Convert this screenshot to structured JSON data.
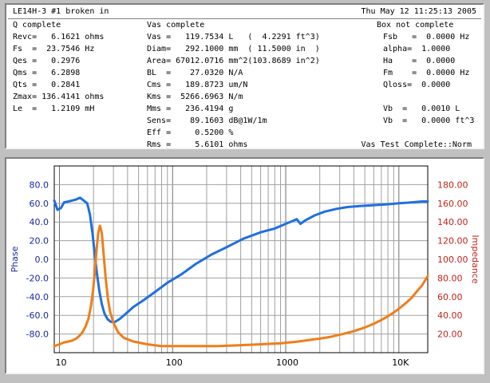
{
  "header": {
    "title": "LE14H-3 #1 broken in",
    "timestamp": "Thu May 12 11:25:13 2005"
  },
  "sections": {
    "q": "Q complete",
    "vas": "Vas complete",
    "box": "Box not complete"
  },
  "q_params": [
    "Revc=   6.1621 ohms",
    "Fs  =  23.7546 Hz",
    "Qes =   0.2976",
    "Qms =   6.2898",
    "Qts =   0.2841",
    "Zmax= 136.4141 ohms",
    "Le  =   1.2109 mH"
  ],
  "vas_params": [
    "Vas =   119.7534 L   (  4.2291 ft^3)",
    "Diam=   292.1000 mm  ( 11.5000 in  )",
    "Area= 67012.0716 mm^2(103.8689 in^2)",
    "BL  =    27.0320 N/A",
    "Cms =   189.8723 um/N",
    "Kms =  5266.6963 N/m",
    "Mms =   236.4194 g",
    "Sens=    89.1603 dB@1W/1m",
    "Eff =     0.5200 %",
    "Rms =     5.6101 ohms"
  ],
  "box_params": [
    "Fsb   =  0.0000 Hz",
    "alpha=  1.0000",
    "Ha    =  0.0000",
    "Fm    =  0.0000 Hz",
    "Qloss=  0.0000",
    "",
    "Vb  =   0.0010 L",
    "Vb  =   0.0000 ft^3"
  ],
  "status": "Vas Test Complete::Norm",
  "chart_data": {
    "type": "line",
    "x_scale": "log",
    "xlim": [
      9,
      18000
    ],
    "x_ticks": [
      {
        "value": 10,
        "label": "10"
      },
      {
        "value": 100,
        "label": "100"
      },
      {
        "value": 1000,
        "label": "1000"
      },
      {
        "value": 10000,
        "label": "10K"
      }
    ],
    "left_axis": {
      "label": "Phase",
      "ylim": [
        -100,
        100
      ],
      "ticks": [
        -80,
        -60,
        -40,
        -20,
        0,
        20,
        40,
        60,
        80
      ],
      "tick_labels": [
        "-80.0",
        "-60.0",
        "-40.0",
        "-20.0",
        "0.0",
        "20.0",
        "40.0",
        "60.0",
        "80.0"
      ]
    },
    "right_axis": {
      "label": "Impedance",
      "ylim": [
        0,
        200
      ],
      "ticks": [
        20,
        40,
        60,
        80,
        100,
        120,
        140,
        160,
        180
      ],
      "tick_labels": [
        "20.00",
        "40.00",
        "60.00",
        "80.00",
        "100.00",
        "120.00",
        "140.00",
        "160.00",
        "180.00"
      ]
    },
    "grid": true,
    "series": [
      {
        "name": "Phase",
        "axis": "left",
        "color": "#1f6fe0",
        "x": [
          9,
          9.6,
          10.3,
          11,
          12,
          13,
          14,
          15.2,
          16.4,
          17.6,
          18.6,
          19.6,
          20.6,
          21.6,
          22.6,
          23.7,
          25,
          26.6,
          28.5,
          31,
          34,
          38,
          45,
          55,
          70,
          90,
          120,
          160,
          220,
          300,
          420,
          600,
          800,
          1000,
          1150,
          1250,
          1350,
          1500,
          1800,
          2200,
          2800,
          3500,
          4500,
          6000,
          8000,
          10000,
          13000,
          16000,
          18000
        ],
        "y": [
          63,
          53,
          55,
          61,
          62,
          63,
          64,
          66,
          63,
          60,
          48,
          28,
          3,
          -18,
          -35,
          -48,
          -58,
          -64,
          -67,
          -67,
          -64,
          -59,
          -51,
          -44,
          -35,
          -25,
          -16,
          -5,
          5,
          13,
          22,
          29,
          33,
          38,
          41,
          43,
          38,
          42,
          47,
          51,
          54,
          56,
          57,
          58,
          59,
          60,
          61,
          62,
          62
        ]
      },
      {
        "name": "Impedance",
        "axis": "right",
        "color": "#f07d1a",
        "x": [
          9,
          10,
          11,
          12,
          13,
          14,
          15,
          16,
          17,
          18,
          19,
          19.8,
          20.5,
          21.2,
          22,
          22.8,
          23.7,
          24.6,
          25.6,
          26.8,
          28,
          30,
          33,
          37,
          45,
          60,
          80,
          100,
          150,
          250,
          400,
          600,
          900,
          1300,
          1700,
          2000,
          2500,
          3200,
          4000,
          5000,
          6000,
          7000,
          8000,
          9000,
          10000,
          11500,
          13000,
          14500,
          16000,
          18000
        ],
        "y": [
          7,
          9,
          11,
          12,
          13,
          15,
          18,
          22,
          28,
          36,
          50,
          66,
          85,
          108,
          128,
          136,
          128,
          105,
          80,
          58,
          44,
          32,
          22,
          16,
          12,
          9,
          7,
          7,
          7,
          7,
          8,
          9,
          10,
          12,
          14,
          15,
          17,
          20,
          23,
          27,
          31,
          35,
          39,
          43,
          47,
          53,
          59,
          66,
          72,
          82
        ]
      }
    ]
  }
}
